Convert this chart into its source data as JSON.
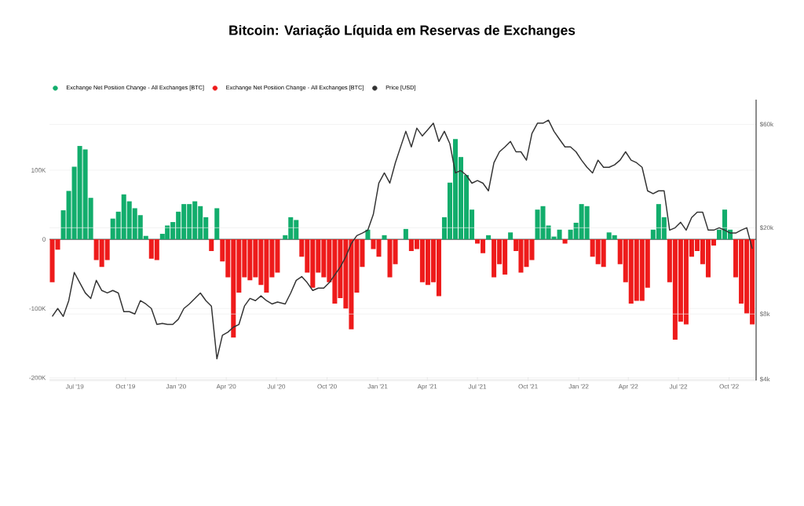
{
  "chart_data": {
    "type": "bar",
    "title": "Bitcoin: Variação Líquida em Reservas de Exchanges",
    "x": [
      "2019-05-21",
      "2019-05-31",
      "2019-06-10",
      "2019-06-20",
      "2019-06-30",
      "2019-07-10",
      "2019-07-20",
      "2019-07-30",
      "2019-08-09",
      "2019-08-19",
      "2019-08-29",
      "2019-09-08",
      "2019-09-18",
      "2019-09-28",
      "2019-10-08",
      "2019-10-18",
      "2019-10-28",
      "2019-11-07",
      "2019-11-17",
      "2019-11-27",
      "2019-12-07",
      "2019-12-16",
      "2019-12-26",
      "2020-01-05",
      "2020-01-15",
      "2020-01-25",
      "2020-02-04",
      "2020-02-14",
      "2020-02-24",
      "2020-03-05",
      "2020-03-15",
      "2020-03-25",
      "2020-04-04",
      "2020-04-14",
      "2020-04-24",
      "2020-05-04",
      "2020-05-14",
      "2020-05-24",
      "2020-06-03",
      "2020-06-13",
      "2020-06-23",
      "2020-07-03",
      "2020-07-17",
      "2020-07-27",
      "2020-08-06",
      "2020-08-16",
      "2020-08-26",
      "2020-09-05",
      "2020-09-15",
      "2020-09-25",
      "2020-10-05",
      "2020-10-15",
      "2020-10-25",
      "2020-11-04",
      "2020-11-14",
      "2020-11-24",
      "2020-12-04",
      "2020-12-14",
      "2020-12-24",
      "2021-01-03",
      "2021-01-13",
      "2021-01-23",
      "2021-02-02",
      "2021-02-21",
      "2021-03-03",
      "2021-03-13",
      "2021-03-23",
      "2021-04-02",
      "2021-04-12",
      "2021-04-22",
      "2021-05-02",
      "2021-05-12",
      "2021-05-22",
      "2021-06-01",
      "2021-06-11",
      "2021-06-21",
      "2021-07-01",
      "2021-07-11",
      "2021-07-21",
      "2021-07-31",
      "2021-08-10",
      "2021-08-20",
      "2021-08-30",
      "2021-09-09",
      "2021-09-18",
      "2021-09-28",
      "2021-10-08",
      "2021-10-18",
      "2021-10-28",
      "2021-11-07",
      "2021-11-17",
      "2021-11-27",
      "2021-12-07",
      "2021-12-17",
      "2021-12-27",
      "2022-01-06",
      "2022-01-16",
      "2022-01-26",
      "2022-02-05",
      "2022-02-15",
      "2022-02-25",
      "2022-03-07",
      "2022-03-17",
      "2022-03-27",
      "2022-04-06",
      "2022-04-16",
      "2022-04-26",
      "2022-05-06",
      "2022-05-16",
      "2022-05-26",
      "2022-06-05",
      "2022-06-15",
      "2022-06-25",
      "2022-07-05",
      "2022-07-15",
      "2022-07-25",
      "2022-08-04",
      "2022-08-14",
      "2022-08-24",
      "2022-09-03",
      "2022-09-13",
      "2022-09-23",
      "2022-10-03",
      "2022-10-13",
      "2022-10-23",
      "2022-11-02",
      "2022-11-12"
    ],
    "series": [
      {
        "name": "Exchange Net Position Change - All Exchanges [BTC]",
        "color": "#12ad6c",
        "values": [
          null,
          null,
          42000,
          70000,
          105000,
          135000,
          130000,
          60000,
          null,
          null,
          null,
          30000,
          40000,
          65000,
          55000,
          45000,
          35000,
          5000,
          null,
          null,
          8000,
          20000,
          25000,
          40000,
          51000,
          51000,
          55000,
          48000,
          32000,
          null,
          45000,
          null,
          null,
          null,
          null,
          null,
          null,
          null,
          null,
          null,
          null,
          null,
          6000,
          32000,
          28000,
          null,
          null,
          null,
          null,
          null,
          null,
          null,
          null,
          null,
          null,
          null,
          null,
          14000,
          null,
          null,
          6000,
          null,
          null,
          15000,
          null,
          null,
          null,
          null,
          null,
          null,
          32000,
          82000,
          145000,
          119000,
          93000,
          43000,
          null,
          null,
          6000,
          null,
          null,
          null,
          10000,
          null,
          null,
          null,
          null,
          43000,
          48000,
          20000,
          4000,
          14000,
          null,
          14000,
          24000,
          51000,
          48000,
          null,
          null,
          null,
          10000,
          6000,
          null,
          null,
          null,
          null,
          null,
          null,
          14000,
          51000,
          32000,
          null,
          null,
          null,
          null,
          null,
          null,
          null,
          null,
          null,
          14000,
          43000,
          14000,
          null,
          null,
          null,
          null
        ]
      },
      {
        "name": "Exchange Net Position Change - All Exchanges [BTC]",
        "color": "#ee1b1b",
        "values": [
          -62000,
          -15000,
          null,
          null,
          null,
          null,
          null,
          null,
          -30000,
          -40000,
          -30000,
          null,
          null,
          null,
          null,
          null,
          null,
          null,
          -28000,
          -30000,
          null,
          null,
          null,
          null,
          null,
          null,
          null,
          null,
          null,
          -17000,
          null,
          -32000,
          -55000,
          -142000,
          -77000,
          -55000,
          -59000,
          -55000,
          -66000,
          -77000,
          -55000,
          -48000,
          null,
          null,
          null,
          -25000,
          -48000,
          -70000,
          -48000,
          -55000,
          -62000,
          -93000,
          -85000,
          -100000,
          -130000,
          -77000,
          -40000,
          null,
          -14000,
          -25000,
          null,
          -55000,
          -36000,
          null,
          -17000,
          -14000,
          -62000,
          -66000,
          -62000,
          -82000,
          null,
          null,
          null,
          null,
          null,
          null,
          -6000,
          -20000,
          null,
          -55000,
          -36000,
          -51000,
          null,
          -17000,
          -48000,
          -40000,
          -30000,
          null,
          null,
          null,
          null,
          null,
          -6000,
          null,
          null,
          null,
          null,
          -25000,
          -36000,
          -40000,
          null,
          null,
          -36000,
          -62000,
          -93000,
          -89000,
          -89000,
          -70000,
          null,
          null,
          null,
          -62000,
          -145000,
          -119000,
          -123000,
          -25000,
          -17000,
          -36000,
          -55000,
          -9000,
          null,
          null,
          null,
          -55000,
          -93000,
          -107000,
          -123000
        ]
      },
      {
        "name": "Price [USD]",
        "type": "line",
        "axis": "y2",
        "color": "#333333",
        "values": [
          7800,
          8480,
          7800,
          9220,
          12440,
          11160,
          10010,
          9440,
          11440,
          10270,
          10010,
          10270,
          10000,
          8200,
          8200,
          8000,
          9220,
          8900,
          8480,
          7160,
          7240,
          7160,
          7160,
          7570,
          8480,
          8900,
          9440,
          10000,
          9220,
          8700,
          4970,
          6380,
          6600,
          6960,
          7160,
          8700,
          9440,
          9220,
          9700,
          9220,
          8900,
          9080,
          8900,
          10000,
          11440,
          11900,
          11160,
          10270,
          10530,
          10530,
          11160,
          12130,
          13180,
          14700,
          16930,
          18400,
          18900,
          19500,
          23050,
          32140,
          35800,
          32140,
          39900,
          55700,
          47200,
          57600,
          53000,
          56700,
          60700,
          50000,
          55700,
          48800,
          35800,
          36700,
          34900,
          32100,
          33000,
          32100,
          29600,
          39900,
          44800,
          47200,
          50000,
          44800,
          44800,
          41000,
          54400,
          60700,
          60700,
          62700,
          55700,
          51200,
          47200,
          47200,
          44800,
          41000,
          38000,
          35800,
          41000,
          38000,
          38000,
          39000,
          41000,
          44800,
          41000,
          39900,
          38000,
          29600,
          28700,
          29600,
          29600,
          19500,
          20000,
          21200,
          19500,
          22300,
          23600,
          23600,
          19500,
          19500,
          20000,
          19500,
          18900,
          18900,
          19500,
          20000,
          16000
        ]
      }
    ],
    "xlim": [
      "2019-05-16",
      "2022-11-19"
    ],
    "xticks": [
      {
        "value": "2019-07-01",
        "label": "Jul '19"
      },
      {
        "value": "2019-10-01",
        "label": "Oct '19"
      },
      {
        "value": "2020-01-01",
        "label": "Jan '20"
      },
      {
        "value": "2020-04-01",
        "label": "Apr '20"
      },
      {
        "value": "2020-07-01",
        "label": "Jul '20"
      },
      {
        "value": "2020-10-01",
        "label": "Oct '20"
      },
      {
        "value": "2021-01-01",
        "label": "Jan '21"
      },
      {
        "value": "2021-04-01",
        "label": "Apr '21"
      },
      {
        "value": "2021-07-01",
        "label": "Jul '21"
      },
      {
        "value": "2021-10-01",
        "label": "Oct '21"
      },
      {
        "value": "2022-01-01",
        "label": "Jan '22"
      },
      {
        "value": "2022-04-01",
        "label": "Apr '22"
      },
      {
        "value": "2022-07-01",
        "label": "Jul '22"
      },
      {
        "value": "2022-10-01",
        "label": "Oct '22"
      }
    ],
    "ylim": [
      -204000,
      202000
    ],
    "yticks": [
      {
        "value": 100000,
        "label": "100K"
      },
      0,
      {
        "value": -100000,
        "label": "-100K"
      },
      {
        "value": -200000,
        "label": "-200K"
      }
    ],
    "y2lim": [
      3950,
      78000
    ],
    "y2ticks": [
      {
        "value": 60000,
        "label": "$60k"
      },
      {
        "value": 20000,
        "label": "$20k"
      },
      {
        "value": 8000,
        "label": "$8k"
      },
      {
        "value": 4000,
        "label": "$4k"
      }
    ],
    "log": "y2",
    "grid": "y",
    "legend": "top left"
  }
}
